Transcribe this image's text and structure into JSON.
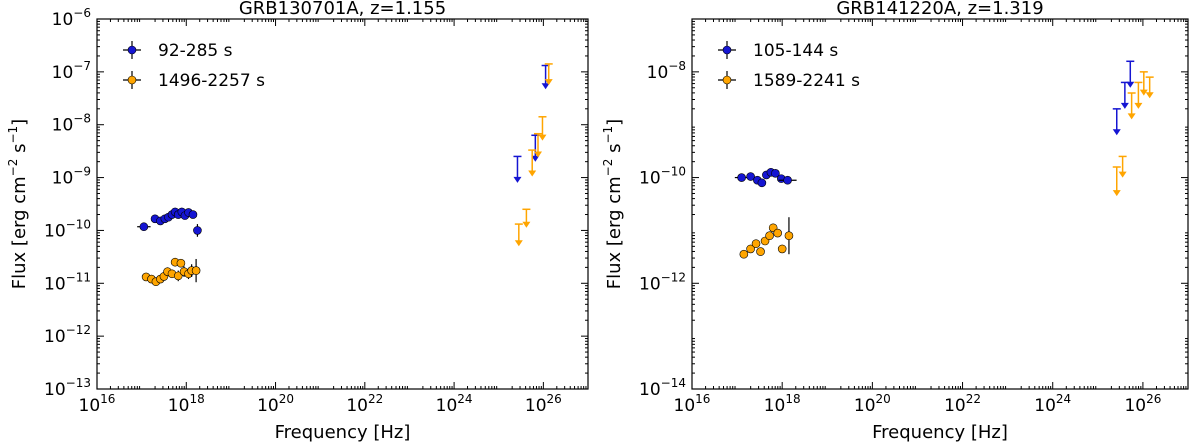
{
  "chart_data": [
    {
      "type": "scatter",
      "title": "GRB130701A, z=1.155",
      "xlabel": "Frequency [Hz]",
      "ylabel": {
        "prefix": "Flux [erg cm",
        "sup1": "−2",
        "mid": " s",
        "sup2": "−1",
        "suffix": "]"
      },
      "x_scale": "log",
      "y_scale": "log",
      "xlim_exp": [
        16,
        27
      ],
      "ylim_exp": [
        -13,
        -6
      ],
      "x_ticks": [
        {
          "base": "10",
          "exp": "16"
        },
        {
          "base": "10",
          "exp": "18"
        },
        {
          "base": "10",
          "exp": "20"
        },
        {
          "base": "10",
          "exp": "22"
        },
        {
          "base": "10",
          "exp": "24"
        },
        {
          "base": "10",
          "exp": "26"
        }
      ],
      "y_ticks": [
        {
          "base": "10",
          "exp": "−13"
        },
        {
          "base": "10",
          "exp": "−12"
        },
        {
          "base": "10",
          "exp": "−11"
        },
        {
          "base": "10",
          "exp": "−10"
        },
        {
          "base": "10",
          "exp": "−9"
        },
        {
          "base": "10",
          "exp": "−8"
        },
        {
          "base": "10",
          "exp": "−7"
        },
        {
          "base": "10",
          "exp": "−6"
        }
      ],
      "legend_position": "top-left",
      "series": [
        {
          "name": "92-285 s",
          "color": "#1515d2",
          "points": [
            {
              "x": 17.05,
              "y": -9.93,
              "xerr": 0.15
            },
            {
              "x": 17.3,
              "y": -9.78
            },
            {
              "x": 17.42,
              "y": -9.82
            },
            {
              "x": 17.52,
              "y": -9.78
            },
            {
              "x": 17.6,
              "y": -9.75
            },
            {
              "x": 17.68,
              "y": -9.7
            },
            {
              "x": 17.75,
              "y": -9.65
            },
            {
              "x": 17.82,
              "y": -9.7
            },
            {
              "x": 17.9,
              "y": -9.65
            },
            {
              "x": 17.97,
              "y": -9.72
            },
            {
              "x": 18.05,
              "y": -9.66
            },
            {
              "x": 18.15,
              "y": -9.7
            },
            {
              "x": 18.25,
              "y": -10.0,
              "yerr": 0.12
            }
          ],
          "upper_limits": [
            {
              "x": 25.42,
              "y": -8.8,
              "yerr": 0.2,
              "arrow": 0.3
            },
            {
              "x": 25.82,
              "y": -8.4,
              "yerr": 0.2,
              "arrow": 0.3
            },
            {
              "x": 26.05,
              "y": -7.08,
              "yerr": 0.2,
              "arrow": 0.25
            }
          ]
        },
        {
          "name": "1496-2257 s",
          "color": "#ffa500",
          "points": [
            {
              "x": 17.1,
              "y": -10.88
            },
            {
              "x": 17.22,
              "y": -10.92
            },
            {
              "x": 17.32,
              "y": -10.97
            },
            {
              "x": 17.42,
              "y": -10.92
            },
            {
              "x": 17.5,
              "y": -10.87
            },
            {
              "x": 17.58,
              "y": -10.78,
              "yerr": 0.08
            },
            {
              "x": 17.68,
              "y": -10.82,
              "yerr": 0.08
            },
            {
              "x": 17.75,
              "y": -10.6,
              "yerr": 0.08
            },
            {
              "x": 17.82,
              "y": -10.86,
              "yerr": 0.1
            },
            {
              "x": 17.88,
              "y": -10.62,
              "yerr": 0.06
            },
            {
              "x": 17.95,
              "y": -10.78,
              "yerr": 0.1
            },
            {
              "x": 18.05,
              "y": -10.82,
              "yerr": 0.1
            },
            {
              "x": 18.12,
              "y": -10.76,
              "yerr": 0.12
            },
            {
              "x": 18.22,
              "y": -10.76,
              "yerr": 0.22
            }
          ],
          "upper_limits": [
            {
              "x": 25.45,
              "y": -10.0,
              "yerr": 0.12,
              "arrow": 0.3
            },
            {
              "x": 25.62,
              "y": -9.8,
              "yerr": 0.2,
              "arrow": 0.15
            },
            {
              "x": 25.75,
              "y": -8.68,
              "yerr": 0.2,
              "arrow": 0.3
            },
            {
              "x": 25.88,
              "y": -8.42,
              "yerr": 0.25,
              "arrow": 0.2
            },
            {
              "x": 25.98,
              "y": -8.05,
              "yerr": 0.2,
              "arrow": 0.25
            },
            {
              "x": 26.12,
              "y": -7.05,
              "yerr": 0.2,
              "arrow": 0.2
            }
          ]
        }
      ]
    },
    {
      "type": "scatter",
      "title": "GRB141220A, z=1.319",
      "xlabel": "Frequency [Hz]",
      "ylabel": {
        "prefix": "Flux [erg cm",
        "sup1": "−2",
        "mid": " s",
        "sup2": "−1",
        "suffix": "]"
      },
      "x_scale": "log",
      "y_scale": "log",
      "xlim_exp": [
        16,
        27
      ],
      "ylim_exp": [
        -14,
        -7
      ],
      "x_ticks": [
        {
          "base": "10",
          "exp": "16"
        },
        {
          "base": "10",
          "exp": "18"
        },
        {
          "base": "10",
          "exp": "20"
        },
        {
          "base": "10",
          "exp": "22"
        },
        {
          "base": "10",
          "exp": "24"
        },
        {
          "base": "10",
          "exp": "26"
        }
      ],
      "y_ticks": [
        {
          "base": "10",
          "exp": "−14"
        },
        {
          "base": "10",
          "exp": "−12"
        },
        {
          "base": "10",
          "exp": "−10"
        },
        {
          "base": "10",
          "exp": "−8"
        }
      ],
      "legend_position": "top-left",
      "series": [
        {
          "name": "105-144 s",
          "color": "#1515d2",
          "points": [
            {
              "x": 17.1,
              "y": -10.0,
              "xerr": 0.15
            },
            {
              "x": 17.3,
              "y": -9.98
            },
            {
              "x": 17.45,
              "y": -10.05
            },
            {
              "x": 17.55,
              "y": -10.1
            },
            {
              "x": 17.65,
              "y": -9.95
            },
            {
              "x": 17.75,
              "y": -9.9
            },
            {
              "x": 17.85,
              "y": -9.92
            },
            {
              "x": 17.98,
              "y": -10.02
            },
            {
              "x": 18.12,
              "y": -10.05,
              "xerr": 0.2
            }
          ],
          "upper_limits": [
            {
              "x": 25.42,
              "y": -8.9,
              "yerr": 0.2,
              "arrow": 0.3
            },
            {
              "x": 25.6,
              "y": -8.4,
              "yerr": 0.2,
              "arrow": 0.3
            },
            {
              "x": 25.72,
              "y": -8.0,
              "yerr": 0.2,
              "arrow": 0.3
            }
          ]
        },
        {
          "name": "1589-2241 s",
          "color": "#ffa500",
          "points": [
            {
              "x": 17.15,
              "y": -11.45
            },
            {
              "x": 17.3,
              "y": -11.35
            },
            {
              "x": 17.42,
              "y": -11.25
            },
            {
              "x": 17.52,
              "y": -11.4
            },
            {
              "x": 17.62,
              "y": -11.2
            },
            {
              "x": 17.72,
              "y": -11.1
            },
            {
              "x": 17.8,
              "y": -10.95
            },
            {
              "x": 17.9,
              "y": -11.05
            },
            {
              "x": 18.0,
              "y": -11.35,
              "xerr": 0.08
            },
            {
              "x": 18.15,
              "y": -11.1,
              "yerr": 0.35
            }
          ],
          "upper_limits": [
            {
              "x": 25.42,
              "y": -10.0,
              "yerr": 0.2,
              "arrow": 0.35
            },
            {
              "x": 25.55,
              "y": -9.8,
              "yerr": 0.2,
              "arrow": 0.2
            },
            {
              "x": 25.75,
              "y": -8.6,
              "yerr": 0.2,
              "arrow": 0.3
            },
            {
              "x": 25.9,
              "y": -8.4,
              "yerr": 0.2,
              "arrow": 0.3
            },
            {
              "x": 26.02,
              "y": -8.25,
              "yerr": 0.25,
              "arrow": 0.2
            },
            {
              "x": 26.15,
              "y": -8.3,
              "yerr": 0.2,
              "arrow": 0.2
            }
          ]
        }
      ]
    }
  ]
}
